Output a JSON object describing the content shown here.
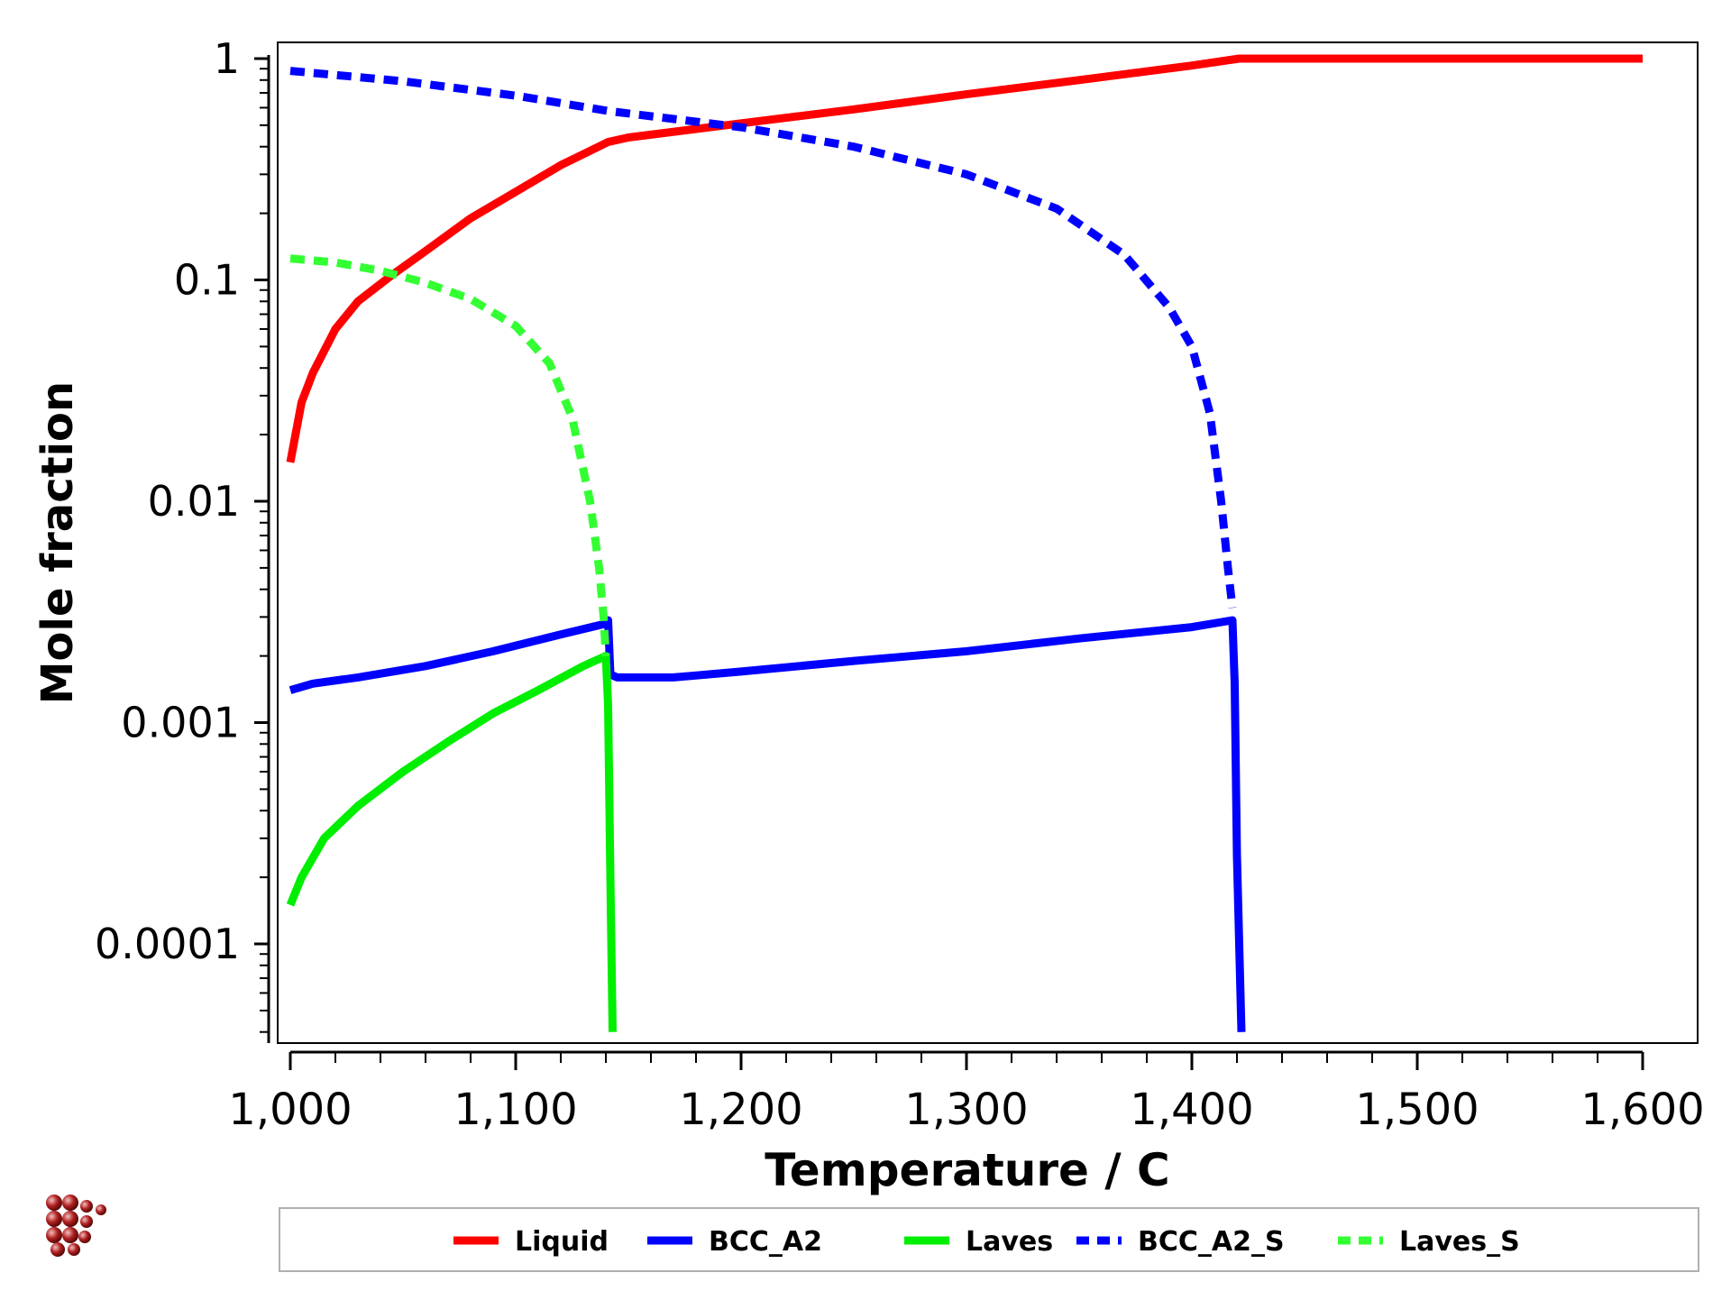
{
  "chart_data": {
    "type": "line",
    "xlabel": "Temperature / C",
    "ylabel": "Mole fraction",
    "xlim": [
      1000,
      1600
    ],
    "ylim": [
      4e-05,
      1
    ],
    "y_scale": "log",
    "x_ticks": [
      1000,
      1100,
      1200,
      1300,
      1400,
      1500,
      1600
    ],
    "x_tick_labels": [
      "1,000",
      "1,100",
      "1,200",
      "1,300",
      "1,400",
      "1,500",
      "1,600"
    ],
    "y_ticks": [
      0.0001,
      0.001,
      0.01,
      0.1,
      1
    ],
    "y_tick_labels": [
      "0.0001",
      "0.001",
      "0.01",
      "0.1",
      "1"
    ],
    "grid": false,
    "legend_position": "bottom",
    "series": [
      {
        "name": "Liquid",
        "color": "#ff0000",
        "dash": "solid",
        "points": [
          [
            1000,
            0.015
          ],
          [
            1005,
            0.028
          ],
          [
            1010,
            0.038
          ],
          [
            1020,
            0.06
          ],
          [
            1030,
            0.08
          ],
          [
            1045,
            0.105
          ],
          [
            1060,
            0.135
          ],
          [
            1080,
            0.19
          ],
          [
            1100,
            0.25
          ],
          [
            1120,
            0.33
          ],
          [
            1141,
            0.42
          ],
          [
            1150,
            0.44
          ],
          [
            1200,
            0.51
          ],
          [
            1250,
            0.59
          ],
          [
            1300,
            0.69
          ],
          [
            1350,
            0.8
          ],
          [
            1400,
            0.93
          ],
          [
            1421,
            1.0
          ],
          [
            1500,
            1.0
          ],
          [
            1600,
            1.0
          ]
        ]
      },
      {
        "name": "BCC_A2",
        "color": "#0000ff",
        "dash": "solid",
        "points": [
          [
            1000,
            0.0014
          ],
          [
            1010,
            0.0015
          ],
          [
            1030,
            0.0016
          ],
          [
            1060,
            0.0018
          ],
          [
            1090,
            0.0021
          ],
          [
            1120,
            0.0025
          ],
          [
            1140,
            0.0028
          ],
          [
            1141,
            0.0029
          ],
          [
            1142,
            0.00165
          ],
          [
            1145,
            0.0016
          ],
          [
            1170,
            0.0016
          ],
          [
            1200,
            0.0017
          ],
          [
            1250,
            0.0019
          ],
          [
            1300,
            0.0021
          ],
          [
            1350,
            0.0024
          ],
          [
            1400,
            0.0027
          ],
          [
            1418,
            0.0029
          ],
          [
            1419,
            0.0015
          ],
          [
            1420,
            0.00025
          ],
          [
            1422,
            4e-05
          ]
        ]
      },
      {
        "name": "Laves",
        "color": "#00ee00",
        "dash": "solid",
        "points": [
          [
            1000,
            0.00015
          ],
          [
            1005,
            0.0002
          ],
          [
            1015,
            0.0003
          ],
          [
            1030,
            0.00042
          ],
          [
            1050,
            0.0006
          ],
          [
            1070,
            0.00082
          ],
          [
            1090,
            0.0011
          ],
          [
            1110,
            0.0014
          ],
          [
            1130,
            0.0018
          ],
          [
            1140,
            0.002
          ],
          [
            1141,
            0.0012
          ],
          [
            1142,
            0.0002
          ],
          [
            1143,
            4e-05
          ]
        ]
      },
      {
        "name": "BCC_A2_S",
        "color": "#0000ff",
        "dash": "dashed",
        "points": [
          [
            1000,
            0.88
          ],
          [
            1050,
            0.79
          ],
          [
            1100,
            0.68
          ],
          [
            1141,
            0.58
          ],
          [
            1200,
            0.49
          ],
          [
            1250,
            0.4
          ],
          [
            1300,
            0.3
          ],
          [
            1340,
            0.21
          ],
          [
            1370,
            0.13
          ],
          [
            1390,
            0.075
          ],
          [
            1400,
            0.05
          ],
          [
            1408,
            0.025
          ],
          [
            1413,
            0.01
          ],
          [
            1416,
            0.005
          ],
          [
            1418,
            0.0033
          ]
        ]
      },
      {
        "name": "Laves_S",
        "color": "#33ff33",
        "dash": "dashed",
        "points": [
          [
            1000,
            0.125
          ],
          [
            1020,
            0.12
          ],
          [
            1040,
            0.11
          ],
          [
            1060,
            0.097
          ],
          [
            1080,
            0.082
          ],
          [
            1100,
            0.062
          ],
          [
            1115,
            0.042
          ],
          [
            1125,
            0.024
          ],
          [
            1133,
            0.01
          ],
          [
            1137,
            0.005
          ],
          [
            1139,
            0.003
          ],
          [
            1140,
            0.002
          ]
        ]
      }
    ]
  }
}
